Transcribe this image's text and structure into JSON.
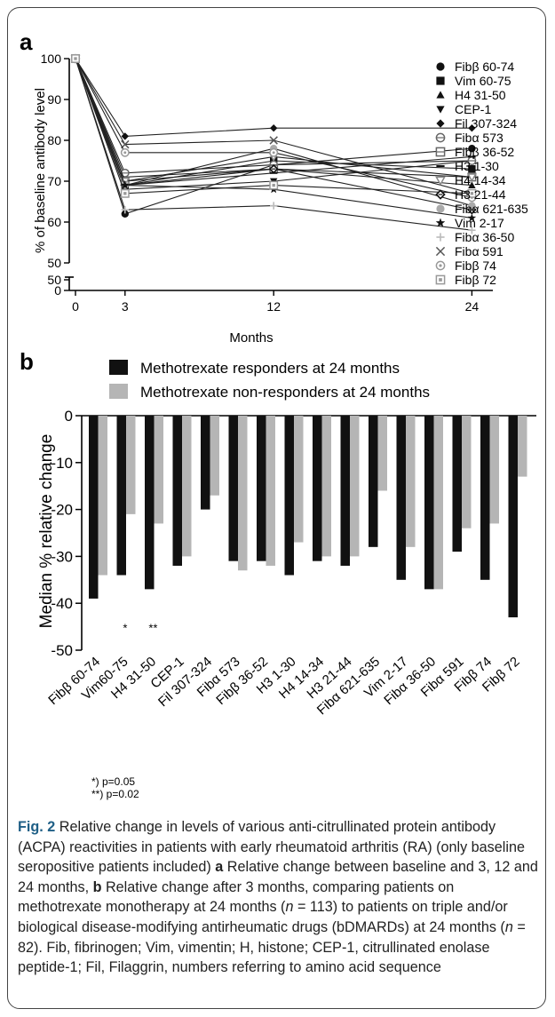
{
  "panels": {
    "a": {
      "letter": "a"
    },
    "b": {
      "letter": "b"
    }
  },
  "chart_data": [
    {
      "type": "line",
      "panel": "a",
      "xlabel": "Months",
      "ylabel": "% of baseline antibody level",
      "x": [
        0,
        3,
        12,
        24
      ],
      "x_ticks": [
        "0",
        "3",
        "12",
        "24"
      ],
      "y_ticks": [
        "0",
        "50",
        "50",
        "60",
        "70",
        "80",
        "90",
        "100"
      ],
      "ylim": [
        50,
        100
      ],
      "axis_break": true,
      "legend_position": "right",
      "series": [
        {
          "name": "Fibβ 60-74",
          "marker": "circle-filled",
          "values": [
            100,
            62,
            74,
            78
          ]
        },
        {
          "name": "Vim 60-75",
          "marker": "square-filled",
          "values": [
            100,
            69,
            75,
            73
          ]
        },
        {
          "name": "H4 31-50",
          "marker": "triangle-up-filled",
          "values": [
            100,
            71,
            73,
            69
          ]
        },
        {
          "name": "CEP-1",
          "marker": "triangle-down-filled",
          "values": [
            100,
            68,
            70,
            75
          ]
        },
        {
          "name": "Fil 307-324",
          "marker": "diamond-filled",
          "values": [
            100,
            81,
            83,
            83
          ]
        },
        {
          "name": "Fibα 573",
          "marker": "circle-open",
          "values": [
            100,
            72,
            74,
            75
          ]
        },
        {
          "name": "Fibβ 36-52",
          "marker": "square-open",
          "values": [
            100,
            70,
            73,
            71
          ]
        },
        {
          "name": "H3 1-30",
          "marker": "dash",
          "values": [
            100,
            69,
            72,
            76
          ]
        },
        {
          "name": "H4 14-34",
          "marker": "triangle-down-open",
          "values": [
            100,
            70,
            76,
            71
          ]
        },
        {
          "name": "H3 21-44",
          "marker": "diamond-open",
          "values": [
            100,
            69,
            73,
            63
          ]
        },
        {
          "name": "Fibα 621-635",
          "marker": "circle-gray",
          "values": [
            100,
            69,
            78,
            64
          ]
        },
        {
          "name": "Vim 2-17",
          "marker": "star",
          "values": [
            100,
            69,
            68,
            61
          ]
        },
        {
          "name": "Fibα 36-50",
          "marker": "cross-light",
          "values": [
            100,
            63,
            64,
            58
          ]
        },
        {
          "name": "Fibα 591",
          "marker": "x",
          "values": [
            100,
            79,
            80,
            67
          ]
        },
        {
          "name": "Fibβ 74",
          "marker": "circle-dotted",
          "values": [
            100,
            77,
            77,
            66
          ]
        },
        {
          "name": "Fibβ 72",
          "marker": "square-gray",
          "values": [
            100,
            67,
            69,
            67
          ]
        }
      ]
    },
    {
      "type": "bar",
      "panel": "b",
      "ylabel": "Median % relative change",
      "ylim": [
        -50,
        0
      ],
      "y_ticks": [
        "0",
        "-10",
        "-20",
        "-30",
        "-40",
        "-50"
      ],
      "categories": [
        "Fibβ 60-74",
        "Vim60-75",
        "H4 31-50",
        "CEP-1",
        "Fil 307-324",
        "Fibα 573",
        "Fibβ 36-52",
        "H3 1-30",
        "H4 14-34",
        "H3 21-44",
        "Fibα 621-635",
        "Vim 2-17",
        "Fibα 36-50",
        "Fibα 591",
        "Fibβ 74",
        "Fibβ 72"
      ],
      "legend_position": "top",
      "series": [
        {
          "name": "Methotrexate responders at 24 months",
          "color": "#111111",
          "values": [
            -39,
            -34,
            -37,
            -32,
            -20,
            -31,
            -31,
            -34,
            -31,
            -32,
            -28,
            -35,
            -37,
            -29,
            -35,
            -43
          ]
        },
        {
          "name": "Methotrexate non-responders at 24 months",
          "color": "#b5b5b5",
          "values": [
            -34,
            -21,
            -23,
            -30,
            -17,
            -33,
            -32,
            -27,
            -30,
            -30,
            -16,
            -28,
            -37,
            -24,
            -23,
            -13
          ]
        }
      ],
      "significance_marks": [
        {
          "category": "Vim60-75",
          "mark": "*"
        },
        {
          "category": "H4 31-50",
          "mark": "**"
        }
      ],
      "footnotes": [
        "*) p=0.05",
        "**) p=0.02"
      ]
    }
  ],
  "caption": {
    "label": "Fig. 2",
    "text": "Relative change in levels of various anti-citrullinated protein antibody (ACPA) reactivities in patients with early rheumatoid arthritis (RA) (only baseline seropositive patients included)",
    "a_letter": "a",
    "a_text": "Relative change between baseline and 3, 12 and 24 months,",
    "b_letter": "b",
    "b_text_1": "Relative change after 3 months, comparing patients on methotrexate monotherapy at 24 months (",
    "n_var": "n",
    "b_n1": " = 113) to patients on triple and/or biological disease-modifying antirheumatic drugs (bDMARDs) at 24 months (",
    "b_n2": " = 82). Fib, fibrinogen; Vim, vimentin; H, histone; CEP-1, citrullinated enolase peptide-1; Fil, Filaggrin, numbers referring to amino acid sequence"
  }
}
